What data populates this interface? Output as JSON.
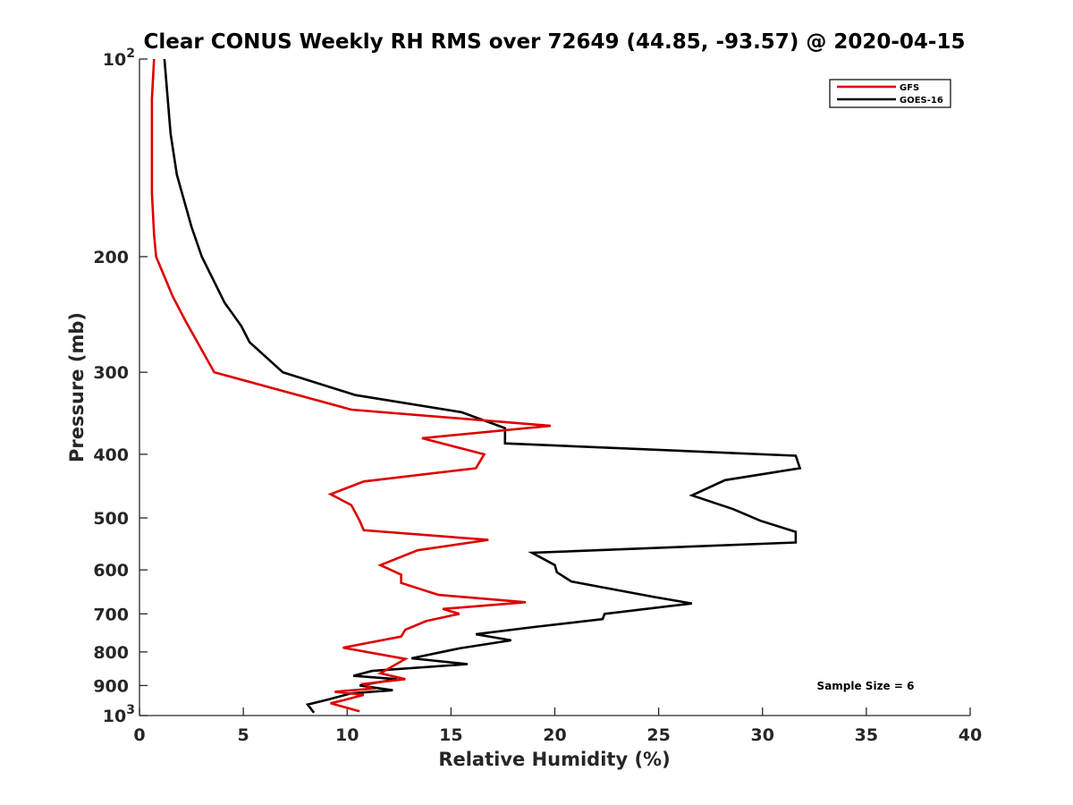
{
  "chart_data": {
    "type": "line",
    "title": "Clear CONUS Weekly RH RMS over 72649 (44.85, -93.57) @ 2020-04-15",
    "xlabel": "Relative Humidity (%)",
    "ylabel": "Pressure (mb)",
    "xlim": [
      0,
      40
    ],
    "ylim": [
      100,
      1000
    ],
    "yscale": "log",
    "y_reversed": true,
    "x_ticks": [
      "0",
      "5",
      "10",
      "15",
      "20",
      "25",
      "30",
      "35",
      "40"
    ],
    "y_ticks": [
      {
        "value": 100,
        "label": "10",
        "sup": "2"
      },
      {
        "value": 200,
        "label": "200",
        "sup": ""
      },
      {
        "value": 300,
        "label": "300",
        "sup": ""
      },
      {
        "value": 400,
        "label": "400",
        "sup": ""
      },
      {
        "value": 500,
        "label": "500",
        "sup": ""
      },
      {
        "value": 600,
        "label": "600",
        "sup": ""
      },
      {
        "value": 700,
        "label": "700",
        "sup": ""
      },
      {
        "value": 800,
        "label": "800",
        "sup": ""
      },
      {
        "value": 900,
        "label": "900",
        "sup": ""
      },
      {
        "value": 1000,
        "label": "10",
        "sup": "3"
      }
    ],
    "grid": false,
    "legend_position": "top-right",
    "annotation": "Sample Size = 6",
    "series": [
      {
        "name": "GFS",
        "color": "#dd0000",
        "points": [
          [
            0.7,
            100
          ],
          [
            0.6,
            115
          ],
          [
            0.6,
            135
          ],
          [
            0.6,
            160
          ],
          [
            0.7,
            185
          ],
          [
            0.8,
            200
          ],
          [
            1.6,
            230
          ],
          [
            2.2,
            250
          ],
          [
            3.6,
            300
          ],
          [
            10.2,
            342
          ],
          [
            19.8,
            362
          ],
          [
            13.6,
            378
          ],
          [
            16.6,
            400
          ],
          [
            16.2,
            420
          ],
          [
            10.8,
            440
          ],
          [
            9.2,
            460
          ],
          [
            10.2,
            478
          ],
          [
            10.6,
            505
          ],
          [
            10.8,
            522
          ],
          [
            16.8,
            540
          ],
          [
            13.4,
            560
          ],
          [
            11.6,
            590
          ],
          [
            12.6,
            610
          ],
          [
            12.6,
            628
          ],
          [
            14.4,
            655
          ],
          [
            18.6,
            672
          ],
          [
            14.6,
            688
          ],
          [
            15.4,
            700
          ],
          [
            13.8,
            718
          ],
          [
            12.8,
            740
          ],
          [
            12.6,
            758
          ],
          [
            9.8,
            788
          ],
          [
            12.8,
            820
          ],
          [
            11.6,
            862
          ],
          [
            12.8,
            880
          ],
          [
            10.8,
            895
          ],
          [
            11.2,
            910
          ],
          [
            9.4,
            920
          ],
          [
            10.8,
            930
          ],
          [
            9.8,
            948
          ],
          [
            9.2,
            958
          ],
          [
            10.6,
            985
          ]
        ]
      },
      {
        "name": "GOES-16",
        "color": "#000000",
        "points": [
          [
            1.2,
            100
          ],
          [
            1.5,
            130
          ],
          [
            1.8,
            150
          ],
          [
            2.5,
            180
          ],
          [
            3.0,
            200
          ],
          [
            4.1,
            235
          ],
          [
            4.9,
            255
          ],
          [
            5.3,
            270
          ],
          [
            6.9,
            300
          ],
          [
            10.4,
            325
          ],
          [
            15.5,
            345
          ],
          [
            17.6,
            365
          ],
          [
            17.6,
            385
          ],
          [
            31.6,
            402
          ],
          [
            31.8,
            420
          ],
          [
            28.2,
            438
          ],
          [
            26.6,
            462
          ],
          [
            28.6,
            485
          ],
          [
            29.9,
            505
          ],
          [
            31.6,
            525
          ],
          [
            31.6,
            545
          ],
          [
            18.9,
            565
          ],
          [
            20.0,
            590
          ],
          [
            20.1,
            605
          ],
          [
            20.8,
            625
          ],
          [
            24.8,
            660
          ],
          [
            26.6,
            675
          ],
          [
            22.4,
            700
          ],
          [
            22.3,
            713
          ],
          [
            19.0,
            733
          ],
          [
            16.2,
            752
          ],
          [
            17.9,
            768
          ],
          [
            15.4,
            790
          ],
          [
            13.1,
            818
          ],
          [
            15.8,
            835
          ],
          [
            11.2,
            855
          ],
          [
            10.3,
            870
          ],
          [
            12.4,
            880
          ],
          [
            10.6,
            900
          ],
          [
            12.2,
            915
          ],
          [
            10.2,
            925
          ],
          [
            9.1,
            945
          ],
          [
            8.1,
            962
          ],
          [
            8.4,
            990
          ]
        ]
      }
    ]
  }
}
